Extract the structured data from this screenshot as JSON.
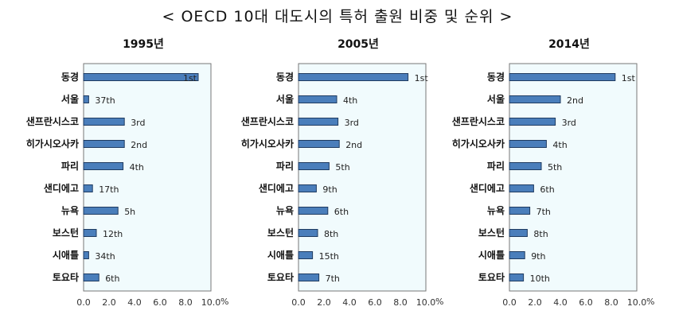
{
  "title": "< OECD 10대 대도시의 특허 출원 비중 및 순위 >",
  "chart_data": [
    {
      "type": "bar",
      "orientation": "horizontal",
      "title": "1995년",
      "categories": [
        "동경",
        "서울",
        "샌프란시스코",
        "히가시오사카",
        "파리",
        "샌디에고",
        "뉴욕",
        "보스턴",
        "시애틀",
        "토요타"
      ],
      "values": [
        9.0,
        0.4,
        3.2,
        3.2,
        3.1,
        0.7,
        2.7,
        1.0,
        0.4,
        1.2
      ],
      "rank_labels": [
        "1st",
        "37th",
        "3rd",
        "2nd",
        "4th",
        "17th",
        "5h",
        "12th",
        "34th",
        "6th"
      ],
      "xlim": [
        0,
        10
      ],
      "x_ticks": [
        "0.0",
        "2.0",
        "4.0",
        "6.0",
        "8.0",
        "10.0"
      ],
      "x_unit": "%"
    },
    {
      "type": "bar",
      "orientation": "horizontal",
      "title": "2005년",
      "categories": [
        "동경",
        "서울",
        "샌프란시스코",
        "히가시오사카",
        "파리",
        "샌디에고",
        "뉴욕",
        "보스턴",
        "시애틀",
        "토요타"
      ],
      "values": [
        8.6,
        3.0,
        3.1,
        3.2,
        2.4,
        1.4,
        2.3,
        1.5,
        1.1,
        1.6
      ],
      "rank_labels": [
        "1st",
        "4th",
        "3rd",
        "2nd",
        "5th",
        "9th",
        "6th",
        "8th",
        "15th",
        "7th"
      ],
      "xlim": [
        0,
        10
      ],
      "x_ticks": [
        "0.0",
        "2.0",
        "4.0",
        "6.0",
        "8.0",
        "10.0"
      ],
      "x_unit": "%"
    },
    {
      "type": "bar",
      "orientation": "horizontal",
      "title": "2014년",
      "categories": [
        "동경",
        "서울",
        "샌프란시스코",
        "히가시오사카",
        "파리",
        "샌디에고",
        "뉴욕",
        "보스턴",
        "시애틀",
        "토요타"
      ],
      "values": [
        8.3,
        4.0,
        3.6,
        2.9,
        2.5,
        1.9,
        1.6,
        1.4,
        1.2,
        1.1
      ],
      "rank_labels": [
        "1st",
        "2nd",
        "3rd",
        "4th",
        "5th",
        "6th",
        "7th",
        "8th",
        "9th",
        "10th"
      ],
      "xlim": [
        0,
        10
      ],
      "x_ticks": [
        "0.0",
        "2.0",
        "4.0",
        "6.0",
        "8.0",
        "10.0"
      ],
      "x_unit": "%"
    }
  ]
}
